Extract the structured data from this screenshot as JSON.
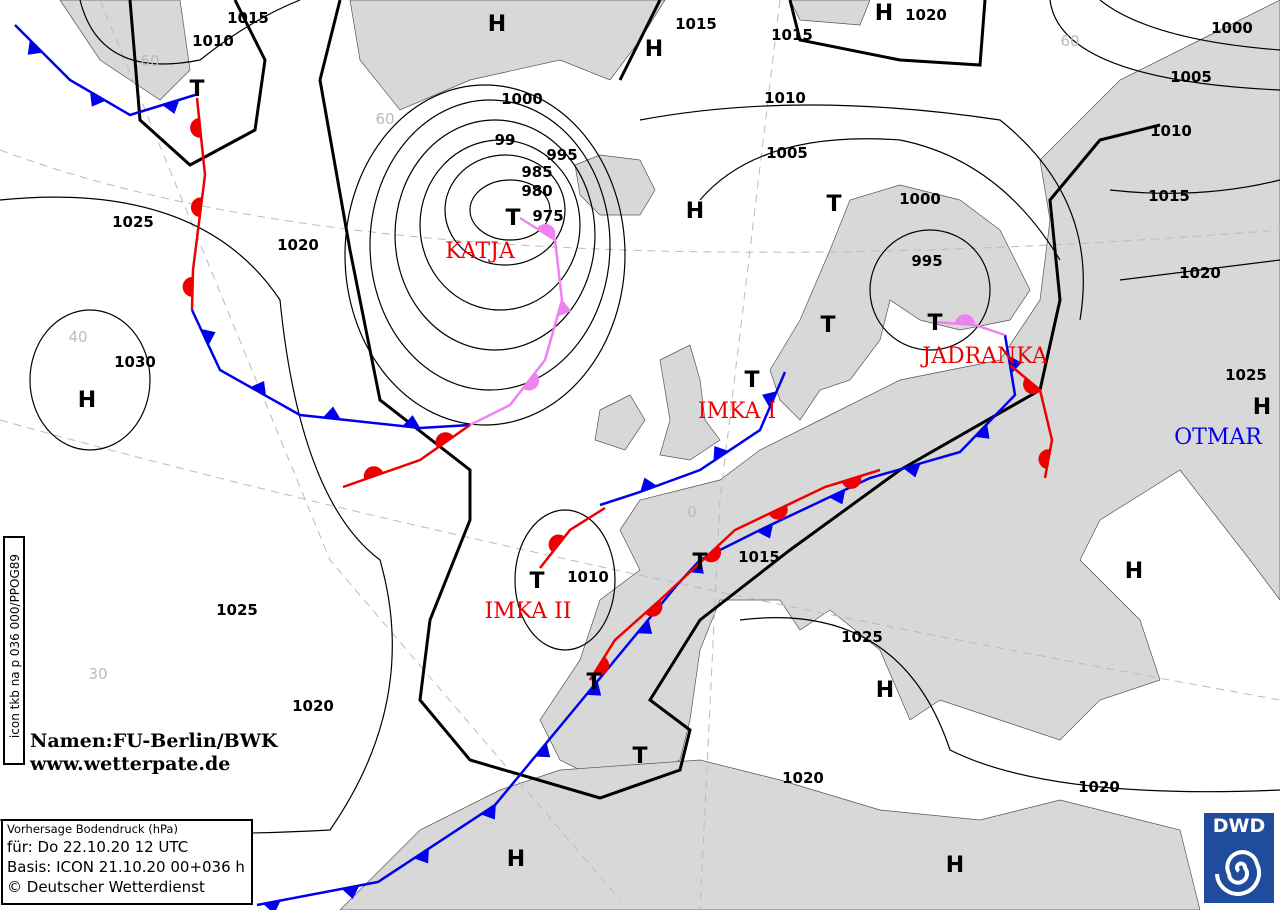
{
  "map": {
    "type": "surface pressure forecast chart",
    "colors": {
      "land": "#d8d8d8",
      "sea": "#ffffff",
      "cold_front": "#0000ee",
      "warm_front": "#ee0000",
      "occlusion": "#ee82ee",
      "isobar": "#000000",
      "grid": "#bbbbbb"
    },
    "isobar_labels": [
      "1015",
      "1010",
      "1015",
      "1015",
      "1020",
      "1000",
      "1005",
      "1010",
      "1015",
      "1020",
      "1025",
      "1000",
      "995",
      "985",
      "980",
      "975",
      "1010",
      "1005",
      "1000",
      "995",
      "1025",
      "1020",
      "1030",
      "1025",
      "1020",
      "1010",
      "1015",
      "1025",
      "1020",
      "1020",
      "99"
    ],
    "highs": [
      "H",
      "H",
      "H",
      "H",
      "H",
      "H",
      "H",
      "H",
      "H",
      "H"
    ],
    "lows": [
      "T",
      "T",
      "T",
      "T",
      "T",
      "T",
      "T",
      "T",
      "T",
      "T"
    ],
    "system_names": [
      "KATJA",
      "IMKA I",
      "IMKA  II",
      "JADRANKA",
      "OTMAR"
    ],
    "grid_labels": [
      "60",
      "60",
      "40",
      "30",
      "0",
      "60"
    ]
  },
  "side_label": "icon tkb na p 036 000/PPOG89",
  "credit": {
    "line1": "Namen:FU-Berlin/BWK",
    "line2": "www.wetterpate.de"
  },
  "info": {
    "title": "Vorhersage Bodendruck (hPa)",
    "valid": "für:  Do 22.10.20  12 UTC",
    "basis": "Basis: ICON  21.10.20 00+036 h",
    "copyright": "© Deutscher Wetterdienst"
  },
  "logo": {
    "text": "DWD",
    "icon": "dwd-spiral-logo"
  }
}
